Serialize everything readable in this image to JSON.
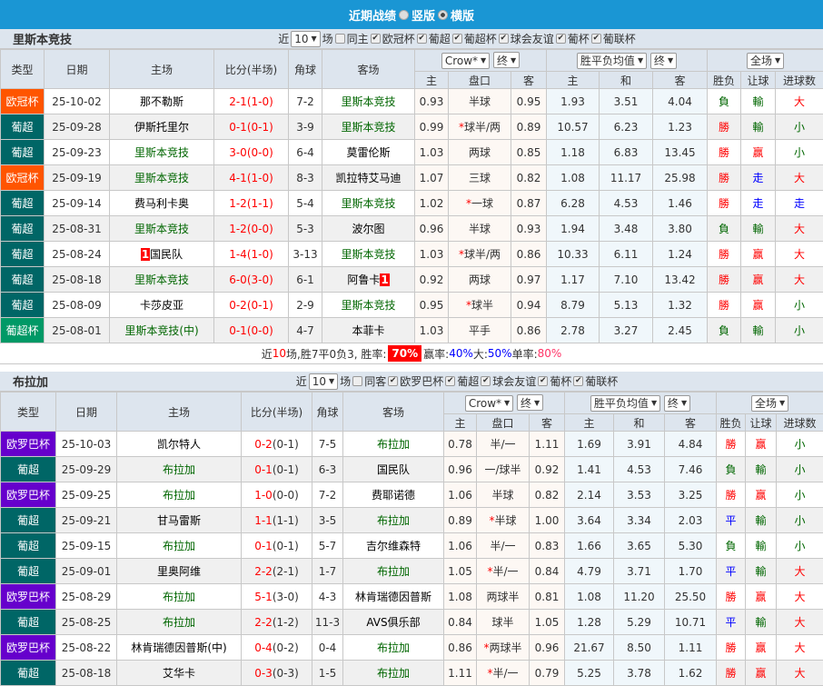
{
  "banner": {
    "title": "近期战绩",
    "opt1": "竖版",
    "opt2": "横版",
    "selected": "横版"
  },
  "colors": {
    "banner": "#1a96d4",
    "欧冠杯": "#ff5500",
    "葡超": "#006666",
    "葡超杯": "#009966",
    "欧罗巴杯": "#6600cc"
  },
  "headers": {
    "type": "类型",
    "date": "日期",
    "home": "主场",
    "score": "比分(半场)",
    "corner": "角球",
    "away": "客场",
    "company": "Crow*",
    "end": "终",
    "avg": "胜平负均值",
    "end2": "终",
    "scope": "全场",
    "h": "主",
    "line": "盘口",
    "a": "客",
    "w": "主",
    "d": "和",
    "l": "客",
    "res": "胜负",
    "hcp": "让球",
    "ou": "进球数"
  },
  "tables": [
    {
      "team": "里斯本竞技",
      "near": "近",
      "count": "10",
      "unit": "场",
      "samefilter": "同主",
      "filters": [
        "欧冠杯",
        "葡超",
        "葡超杯",
        "球会友谊",
        "葡杯",
        "葡联杯"
      ],
      "rows": [
        [
          "欧冠杯",
          "25-10-02",
          "那不勒斯",
          "2-1",
          "(1-0)",
          "7-2",
          "里斯本竞技",
          "0.93",
          "半球",
          "",
          "0.95",
          "1.93",
          "3.51",
          "4.04",
          "負",
          "輸",
          "大",
          "",
          ""
        ],
        [
          "葡超",
          "25-09-28",
          "伊斯托里尔",
          "0-1",
          "(0-1)",
          "3-9",
          "里斯本竞技",
          "0.99",
          "球半/两",
          "*",
          "0.89",
          "10.57",
          "6.23",
          "1.23",
          "勝",
          "輸",
          "小",
          "",
          ""
        ],
        [
          "葡超",
          "25-09-23",
          "里斯本竞技",
          "3-0",
          "(0-0)",
          "6-4",
          "莫雷伦斯",
          "1.03",
          "两球",
          "",
          "0.85",
          "1.18",
          "6.83",
          "13.45",
          "勝",
          "赢",
          "小",
          "",
          ""
        ],
        [
          "欧冠杯",
          "25-09-19",
          "里斯本竞技",
          "4-1",
          "(1-0)",
          "8-3",
          "凯拉特艾马迪",
          "1.07",
          "三球",
          "",
          "0.82",
          "1.08",
          "11.17",
          "25.98",
          "勝",
          "走",
          "大",
          "",
          ""
        ],
        [
          "葡超",
          "25-09-14",
          "费马利卡奥",
          "1-2",
          "(1-1)",
          "5-4",
          "里斯本竞技",
          "1.02",
          "一球",
          "*",
          "0.87",
          "6.28",
          "4.53",
          "1.46",
          "勝",
          "走",
          "走",
          "",
          ""
        ],
        [
          "葡超",
          "25-08-31",
          "里斯本竞技",
          "1-2",
          "(0-0)",
          "5-3",
          "波尔图",
          "0.96",
          "半球",
          "",
          "0.93",
          "1.94",
          "3.48",
          "3.80",
          "負",
          "輸",
          "大",
          "",
          ""
        ],
        [
          "葡超",
          "25-08-24",
          "国民队",
          "1-4",
          "(1-0)",
          "3-13",
          "里斯本竞技",
          "1.03",
          "球半/两",
          "*",
          "0.86",
          "10.33",
          "6.11",
          "1.24",
          "勝",
          "赢",
          "大",
          "1",
          ""
        ],
        [
          "葡超",
          "25-08-18",
          "里斯本竞技",
          "6-0",
          "(3-0)",
          "6-1",
          "阿鲁卡",
          "0.92",
          "两球",
          "",
          "0.97",
          "1.17",
          "7.10",
          "13.42",
          "勝",
          "赢",
          "大",
          "",
          "1"
        ],
        [
          "葡超",
          "25-08-09",
          "卡莎皮亚",
          "0-2",
          "(0-1)",
          "2-9",
          "里斯本竞技",
          "0.95",
          "球半",
          "*",
          "0.94",
          "8.79",
          "5.13",
          "1.32",
          "勝",
          "赢",
          "小",
          "",
          ""
        ],
        [
          "葡超杯",
          "25-08-01",
          "里斯本竞技(中)",
          "0-1",
          "(0-0)",
          "4-7",
          "本菲卡",
          "1.03",
          "平手",
          "",
          "0.86",
          "2.78",
          "3.27",
          "2.45",
          "負",
          "輸",
          "小",
          "",
          ""
        ]
      ],
      "summary": {
        "p1": "近",
        "n": "10",
        "p2": "场,胜7平0负3, 胜率:",
        "win": "70%",
        "p3": "赢率:",
        "hwin": "40%",
        "p4": "大:",
        "big": "50%",
        "p5": "单率:",
        "odd": "80%"
      }
    },
    {
      "team": "布拉加",
      "near": "近",
      "count": "10",
      "unit": "场",
      "samefilter": "同客",
      "filters": [
        "欧罗巴杯",
        "葡超",
        "球会友谊",
        "葡杯",
        "葡联杯"
      ],
      "rows": [
        [
          "欧罗巴杯",
          "25-10-03",
          "凯尔特人",
          "0-2",
          "(0-1)",
          "7-5",
          "布拉加",
          "0.78",
          "半/一",
          "",
          "1.11",
          "1.69",
          "3.91",
          "4.84",
          "勝",
          "赢",
          "小",
          "",
          ""
        ],
        [
          "葡超",
          "25-09-29",
          "布拉加",
          "0-1",
          "(0-1)",
          "6-3",
          "国民队",
          "0.96",
          "一/球半",
          "",
          "0.92",
          "1.41",
          "4.53",
          "7.46",
          "負",
          "輸",
          "小",
          "",
          ""
        ],
        [
          "欧罗巴杯",
          "25-09-25",
          "布拉加",
          "1-0",
          "(0-0)",
          "7-2",
          "费耶诺德",
          "1.06",
          "半球",
          "",
          "0.82",
          "2.14",
          "3.53",
          "3.25",
          "勝",
          "赢",
          "小",
          "",
          ""
        ],
        [
          "葡超",
          "25-09-21",
          "甘马雷斯",
          "1-1",
          "(1-1)",
          "3-5",
          "布拉加",
          "0.89",
          "半球",
          "*",
          "1.00",
          "3.64",
          "3.34",
          "2.03",
          "平",
          "輸",
          "小",
          "",
          ""
        ],
        [
          "葡超",
          "25-09-15",
          "布拉加",
          "0-1",
          "(0-1)",
          "5-7",
          "吉尔维森特",
          "1.06",
          "半/一",
          "",
          "0.83",
          "1.66",
          "3.65",
          "5.30",
          "負",
          "輸",
          "小",
          "",
          ""
        ],
        [
          "葡超",
          "25-09-01",
          "里奥阿维",
          "2-2",
          "(2-1)",
          "1-7",
          "布拉加",
          "1.05",
          "半/一",
          "*",
          "0.84",
          "4.79",
          "3.71",
          "1.70",
          "平",
          "輸",
          "大",
          "",
          ""
        ],
        [
          "欧罗巴杯",
          "25-08-29",
          "布拉加",
          "5-1",
          "(3-0)",
          "4-3",
          "林肯瑞德因普斯",
          "1.08",
          "两球半",
          "",
          "0.81",
          "1.08",
          "11.20",
          "25.50",
          "勝",
          "赢",
          "大",
          "",
          ""
        ],
        [
          "葡超",
          "25-08-25",
          "布拉加",
          "2-2",
          "(1-2)",
          "11-3",
          "AVS俱乐部",
          "0.84",
          "球半",
          "",
          "1.05",
          "1.28",
          "5.29",
          "10.71",
          "平",
          "輸",
          "大",
          "",
          ""
        ],
        [
          "欧罗巴杯",
          "25-08-22",
          "林肯瑞德因普斯(中)",
          "0-4",
          "(0-2)",
          "0-4",
          "布拉加",
          "0.86",
          "两球半",
          "*",
          "0.96",
          "21.67",
          "8.50",
          "1.11",
          "勝",
          "赢",
          "大",
          "",
          ""
        ],
        [
          "葡超",
          "25-08-18",
          "艾华卡",
          "0-3",
          "(0-3)",
          "1-5",
          "布拉加",
          "1.11",
          "半/一",
          "*",
          "0.79",
          "5.25",
          "3.78",
          "1.62",
          "勝",
          "赢",
          "大",
          "",
          ""
        ]
      ]
    }
  ]
}
